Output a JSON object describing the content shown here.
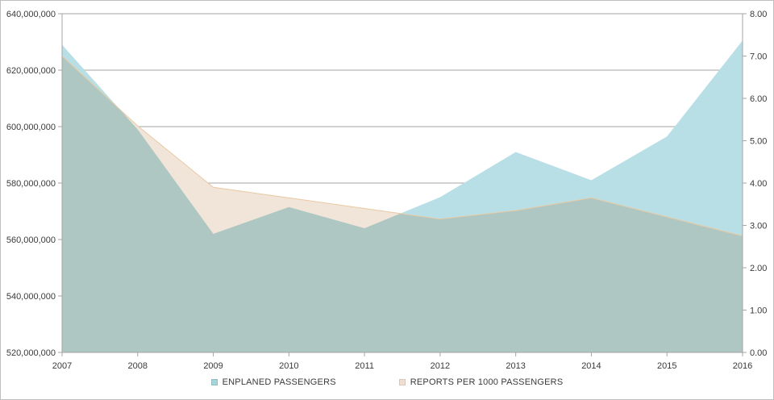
{
  "window": {
    "background": "#ffffff",
    "border_color": "#bfbfbf"
  },
  "chart_data": {
    "type": "area",
    "title": "",
    "xlabel": "",
    "ylabel_left": "",
    "ylabel_right": "",
    "grid": true,
    "legend_position": "bottom",
    "x": [
      2007,
      2008,
      2009,
      2010,
      2011,
      2012,
      2013,
      2014,
      2015,
      2016
    ],
    "x_tick_labels": [
      "2007",
      "2008",
      "2009",
      "2010",
      "2011",
      "2012",
      "2013",
      "2014",
      "2015",
      "2016"
    ],
    "series": [
      {
        "name": "ENPLANED PASSENGERS",
        "axis": "left",
        "color": "#b9dfe6",
        "values": [
          629000000,
          599000000,
          562000000,
          571500000,
          564000000,
          575000000,
          591000000,
          581000000,
          596500000,
          630500000
        ]
      },
      {
        "name": "REPORTS PER 1000 PASSENGERS",
        "axis": "right",
        "color": "#f1e5d9",
        "edge_color": "#e9c9a3",
        "values": [
          7.0,
          5.35,
          3.9,
          3.65,
          3.4,
          3.15,
          3.35,
          3.65,
          3.2,
          2.75
        ]
      }
    ],
    "overlap_color": "#aec7c2",
    "left_axis": {
      "min": 520000000,
      "max": 640000000,
      "step": 20000000,
      "tick_labels": [
        "640,000,000",
        "620,000,000",
        "600,000,000",
        "580,000,000",
        "560,000,000",
        "540,000,000",
        "520,000,000"
      ]
    },
    "right_axis": {
      "min": 0,
      "max": 8,
      "step": 1,
      "tick_labels": [
        "8.00",
        "7.00",
        "6.00",
        "5.00",
        "4.00",
        "3.00",
        "2.00",
        "1.00",
        "0.00"
      ]
    },
    "gridline_color": "#a6a6a6",
    "axis_color": "#a6a6a6",
    "label_color": "#3a3a3a",
    "legend": [
      {
        "label": "ENPLANED PASSENGERS",
        "color": "#a5d5d8"
      },
      {
        "label": "REPORTS PER 1000 PASSENGERS",
        "color": "#f0ded0"
      }
    ]
  }
}
